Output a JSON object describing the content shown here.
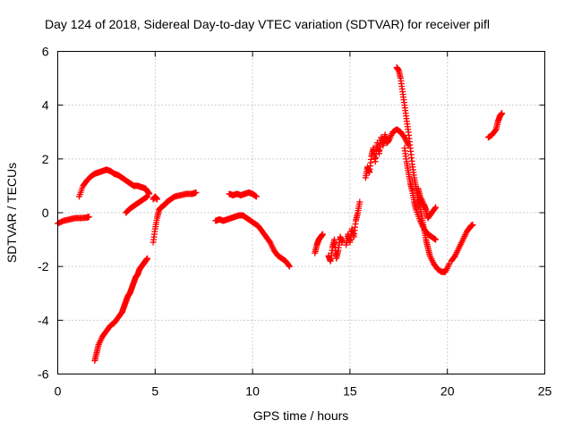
{
  "chart_data": {
    "type": "scatter",
    "title": "Day 124 of 2018, Sidereal Day-to-day VTEC variation (SDTVAR) for receiver pifl",
    "xlabel": "GPS time / hours",
    "ylabel": "SDTVAR / TECUs",
    "xlim": [
      0,
      25
    ],
    "ylim": [
      -6,
      6
    ],
    "xticks": [
      0,
      5,
      10,
      15,
      20,
      25
    ],
    "xtick_labels": [
      "0",
      "5",
      "10",
      "15",
      "20",
      "25"
    ],
    "yticks": [
      -6,
      -4,
      -2,
      0,
      2,
      4,
      6
    ],
    "ytick_labels": [
      "-6",
      "-4",
      "-2",
      "0",
      "2",
      "4",
      "6"
    ],
    "grid": true,
    "marker": "+",
    "color": "#ff0000",
    "series": [
      {
        "name": "SDTVAR",
        "segments": [
          {
            "x": [
              0.0,
              0.3,
              0.6,
              0.9,
              1.2,
              1.5,
              1.6
            ],
            "y": [
              -0.4,
              -0.3,
              -0.25,
              -0.2,
              -0.2,
              -0.18,
              -0.15
            ]
          },
          {
            "x": [
              1.1,
              1.3,
              1.5,
              1.7,
              1.9,
              2.1,
              2.3,
              2.5,
              2.7,
              2.9,
              3.1,
              3.3,
              3.5,
              3.7,
              3.9,
              4.1,
              4.3,
              4.5,
              4.6,
              4.7
            ],
            "y": [
              0.6,
              1.0,
              1.2,
              1.35,
              1.45,
              1.5,
              1.55,
              1.6,
              1.55,
              1.45,
              1.4,
              1.3,
              1.2,
              1.1,
              1.0,
              1.0,
              0.95,
              0.9,
              0.8,
              0.7
            ]
          },
          {
            "x": [
              3.5,
              3.7,
              3.9,
              4.1,
              4.3,
              4.5,
              4.6
            ],
            "y": [
              0.0,
              0.15,
              0.25,
              0.35,
              0.45,
              0.55,
              0.6
            ]
          },
          {
            "x": [
              1.9,
              2.0,
              2.1,
              2.3,
              2.5,
              2.7,
              2.9,
              3.1,
              3.3,
              3.4,
              3.5,
              3.6,
              3.7,
              3.8,
              3.9,
              4.0,
              4.1,
              4.2,
              4.3,
              4.4,
              4.5,
              4.6
            ],
            "y": [
              -5.5,
              -5.2,
              -4.9,
              -4.6,
              -4.4,
              -4.2,
              -4.1,
              -3.9,
              -3.7,
              -3.5,
              -3.3,
              -3.1,
              -3.0,
              -2.8,
              -2.6,
              -2.4,
              -2.3,
              -2.1,
              -2.0,
              -1.9,
              -1.8,
              -1.7
            ]
          },
          {
            "x": [
              4.9,
              5.0,
              5.1,
              5.2,
              5.3,
              5.5,
              5.6,
              5.8,
              6.0,
              6.3,
              6.6,
              6.9,
              7.1
            ],
            "y": [
              -1.1,
              -0.6,
              -0.2,
              0.1,
              0.2,
              0.3,
              0.4,
              0.5,
              0.6,
              0.65,
              0.7,
              0.7,
              0.75
            ]
          },
          {
            "x": [
              4.9,
              5.0,
              5.1
            ],
            "y": [
              0.5,
              0.6,
              0.5
            ]
          },
          {
            "x": [
              8.1,
              8.3,
              8.5,
              8.7,
              8.9,
              9.1,
              9.3,
              9.5,
              9.7,
              9.9,
              10.1,
              10.3,
              10.5,
              10.7,
              10.9,
              11.1,
              11.3,
              11.5,
              11.7,
              11.9
            ],
            "y": [
              -0.3,
              -0.25,
              -0.3,
              -0.25,
              -0.2,
              -0.15,
              -0.1,
              -0.1,
              -0.2,
              -0.3,
              -0.4,
              -0.5,
              -0.7,
              -0.9,
              -1.1,
              -1.4,
              -1.6,
              -1.7,
              -1.8,
              -2.0
            ]
          },
          {
            "x": [
              8.8,
              9.0,
              9.2,
              9.4,
              9.6,
              9.8,
              10.0,
              10.2
            ],
            "y": [
              0.7,
              0.65,
              0.7,
              0.65,
              0.7,
              0.75,
              0.7,
              0.6
            ]
          },
          {
            "x": [
              13.2,
              13.3,
              13.4,
              13.5,
              13.6
            ],
            "y": [
              -1.5,
              -1.2,
              -1.0,
              -0.9,
              -0.8
            ]
          },
          {
            "x": [
              13.9,
              14.0,
              14.1,
              14.2,
              14.3,
              14.4,
              14.5,
              14.6
            ],
            "y": [
              -1.6,
              -1.8,
              -1.3,
              -1.0,
              -1.7,
              -1.4,
              -0.9,
              -1.1
            ]
          },
          {
            "x": [
              14.8,
              14.9,
              15.0,
              15.1,
              15.2,
              15.3,
              15.4,
              15.5
            ],
            "y": [
              -1.2,
              -0.8,
              -1.1,
              -0.6,
              -0.9,
              -0.3,
              0.0,
              0.4
            ]
          },
          {
            "x": [
              15.8,
              15.9,
              16.0,
              16.1,
              16.2,
              16.3,
              16.4,
              16.5,
              16.6,
              16.7,
              16.8,
              16.9,
              17.0,
              17.2,
              17.4,
              17.6,
              17.8,
              18.0
            ],
            "y": [
              1.3,
              1.7,
              1.5,
              2.1,
              2.4,
              1.9,
              2.6,
              2.2,
              2.8,
              2.5,
              2.9,
              2.6,
              2.7,
              3.0,
              3.1,
              3.0,
              2.8,
              2.5
            ]
          },
          {
            "x": [
              17.4,
              17.5,
              17.6,
              17.7,
              17.8,
              17.9,
              18.0,
              18.1,
              18.2,
              18.3,
              18.4,
              18.5,
              18.6,
              18.7,
              18.8,
              18.9,
              19.0,
              19.1,
              19.3,
              19.5,
              19.7,
              19.9,
              20.1
            ],
            "y": [
              5.4,
              5.3,
              5.0,
              4.5,
              4.0,
              3.5,
              3.0,
              2.4,
              1.8,
              1.3,
              0.9,
              0.5,
              0.2,
              -0.2,
              -0.6,
              -1.0,
              -1.3,
              -1.6,
              -1.9,
              -2.1,
              -2.2,
              -2.2,
              -1.9
            ]
          },
          {
            "x": [
              17.8,
              17.9,
              18.0,
              18.1,
              18.2,
              18.3,
              18.4,
              18.6,
              18.8,
              19.0,
              19.2,
              19.4
            ],
            "y": [
              2.4,
              1.9,
              1.5,
              1.1,
              0.8,
              0.4,
              0.1,
              -0.3,
              -0.6,
              -0.8,
              -0.9,
              -1.0
            ]
          },
          {
            "x": [
              18.5,
              18.6,
              18.8,
              18.9,
              19.0,
              19.2,
              19.4
            ],
            "y": [
              0.9,
              0.6,
              0.3,
              0.1,
              -0.2,
              0.0,
              0.2
            ]
          },
          {
            "x": [
              20.2,
              20.4,
              20.6,
              20.8,
              21.0,
              21.2,
              21.3
            ],
            "y": [
              -1.8,
              -1.6,
              -1.3,
              -1.0,
              -0.7,
              -0.5,
              -0.45
            ]
          },
          {
            "x": [
              22.1,
              22.3,
              22.5,
              22.6,
              22.7,
              22.8
            ],
            "y": [
              2.8,
              2.9,
              3.1,
              3.4,
              3.6,
              3.7
            ]
          }
        ]
      }
    ]
  }
}
